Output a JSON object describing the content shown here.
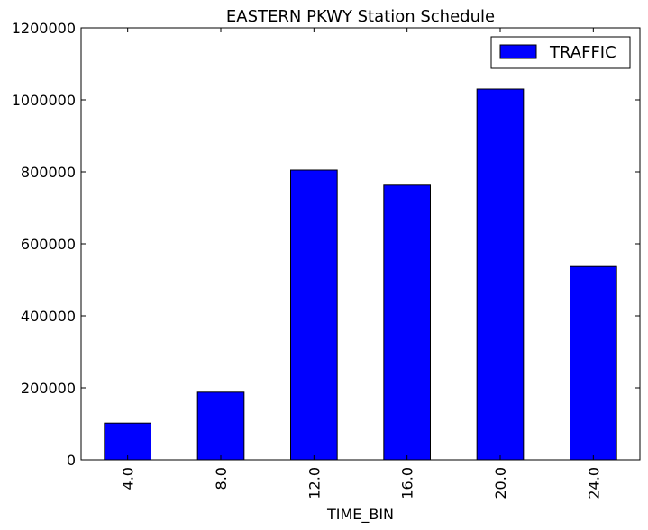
{
  "chart_data": {
    "type": "bar",
    "title": "EASTERN PKWY Station Schedule",
    "xlabel": "TIME_BIN",
    "ylabel": "",
    "categories": [
      "4.0",
      "8.0",
      "12.0",
      "16.0",
      "20.0",
      "24.0"
    ],
    "series": [
      {
        "name": "TRAFFIC",
        "values": [
          102000,
          188000,
          805000,
          763000,
          1030000,
          537000
        ],
        "color": "#0000ff"
      }
    ],
    "ylim": [
      0,
      1200000
    ],
    "yticks": [
      0,
      200000,
      400000,
      600000,
      800000,
      1000000,
      1200000
    ],
    "ytick_labels": [
      "0",
      "200000",
      "400000",
      "600000",
      "800000",
      "1000000",
      "1200000"
    ],
    "grid": false,
    "legend_position": "top-right"
  }
}
